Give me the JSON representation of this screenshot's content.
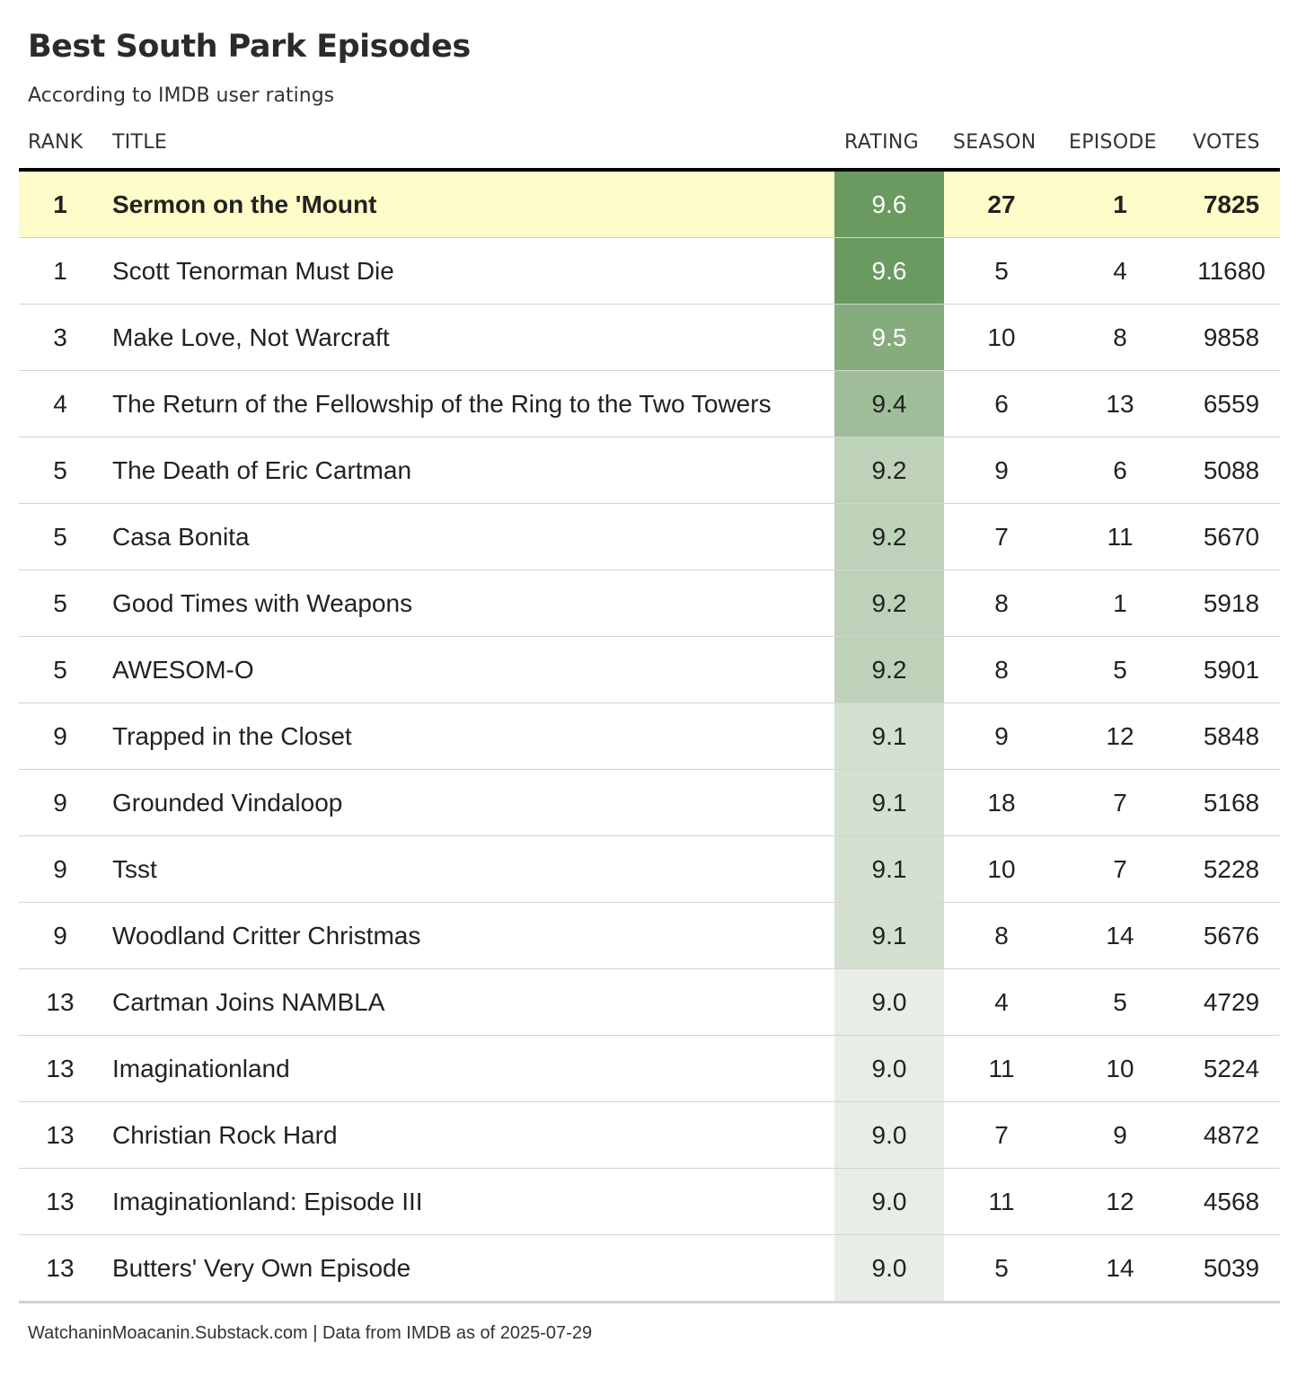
{
  "chart_data": {
    "type": "table",
    "title": "Best South Park Episodes",
    "subtitle": "According to IMDB user ratings",
    "columns": [
      "RANK",
      "TITLE",
      "RATING",
      "SEASON",
      "EPISODE",
      "VOTES"
    ],
    "highlight_row": 0,
    "colors": {
      "highlight_bg": "#fefdc9",
      "rating_9_6": "#6a9a5f",
      "rating_9_5": "#86ac7d",
      "rating_9_4": "#9fbd98",
      "rating_9_2": "#bed2ba",
      "rating_9_1": "#d4e1d1",
      "rating_9_0": "#e8ede6"
    },
    "rows": [
      {
        "rank": "1",
        "title": "Sermon on the 'Mount",
        "rating": "9.6",
        "season": "27",
        "episode": "1",
        "votes": "7825"
      },
      {
        "rank": "1",
        "title": "Scott Tenorman Must Die",
        "rating": "9.6",
        "season": "5",
        "episode": "4",
        "votes": "11680"
      },
      {
        "rank": "3",
        "title": "Make Love, Not Warcraft",
        "rating": "9.5",
        "season": "10",
        "episode": "8",
        "votes": "9858"
      },
      {
        "rank": "4",
        "title": "The Return of the Fellowship of the Ring to the Two Towers",
        "rating": "9.4",
        "season": "6",
        "episode": "13",
        "votes": "6559"
      },
      {
        "rank": "5",
        "title": "The Death of Eric Cartman",
        "rating": "9.2",
        "season": "9",
        "episode": "6",
        "votes": "5088"
      },
      {
        "rank": "5",
        "title": "Casa Bonita",
        "rating": "9.2",
        "season": "7",
        "episode": "11",
        "votes": "5670"
      },
      {
        "rank": "5",
        "title": "Good Times with Weapons",
        "rating": "9.2",
        "season": "8",
        "episode": "1",
        "votes": "5918"
      },
      {
        "rank": "5",
        "title": "AWESOM-O",
        "rating": "9.2",
        "season": "8",
        "episode": "5",
        "votes": "5901"
      },
      {
        "rank": "9",
        "title": "Trapped in the Closet",
        "rating": "9.1",
        "season": "9",
        "episode": "12",
        "votes": "5848"
      },
      {
        "rank": "9",
        "title": "Grounded Vindaloop",
        "rating": "9.1",
        "season": "18",
        "episode": "7",
        "votes": "5168"
      },
      {
        "rank": "9",
        "title": "Tsst",
        "rating": "9.1",
        "season": "10",
        "episode": "7",
        "votes": "5228"
      },
      {
        "rank": "9",
        "title": "Woodland Critter Christmas",
        "rating": "9.1",
        "season": "8",
        "episode": "14",
        "votes": "5676"
      },
      {
        "rank": "13",
        "title": "Cartman Joins NAMBLA",
        "rating": "9.0",
        "season": "4",
        "episode": "5",
        "votes": "4729"
      },
      {
        "rank": "13",
        "title": "Imaginationland",
        "rating": "9.0",
        "season": "11",
        "episode": "10",
        "votes": "5224"
      },
      {
        "rank": "13",
        "title": "Christian Rock Hard",
        "rating": "9.0",
        "season": "7",
        "episode": "9",
        "votes": "4872"
      },
      {
        "rank": "13",
        "title": "Imaginationland: Episode III",
        "rating": "9.0",
        "season": "11",
        "episode": "12",
        "votes": "4568"
      },
      {
        "rank": "13",
        "title": "Butters' Very Own Episode",
        "rating": "9.0",
        "season": "5",
        "episode": "14",
        "votes": "5039"
      }
    ],
    "footer": "WatchaninMoacanin.Substack.com | Data from IMDB as of 2025-07-29"
  }
}
